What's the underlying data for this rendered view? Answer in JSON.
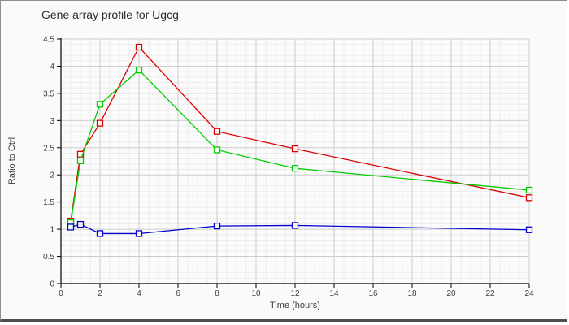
{
  "window": {
    "background": "#fafafa",
    "border_color": "#909090",
    "bottom_border_color": "#4f4f4f"
  },
  "title": {
    "text": "Gene array profile for Ugcg"
  },
  "chart_data": {
    "type": "line",
    "x": [
      0.5,
      1,
      2,
      4,
      8,
      12,
      24
    ],
    "series": [
      {
        "name": "red-series",
        "color": "#dd0000",
        "values": [
          1.15,
          2.38,
          2.95,
          4.35,
          2.8,
          2.48,
          1.58
        ]
      },
      {
        "name": "green-series",
        "color": "#00cc00",
        "values": [
          1.12,
          2.26,
          3.3,
          3.93,
          2.46,
          2.12,
          1.72
        ]
      },
      {
        "name": "blue-series",
        "color": "#0000cc",
        "values": [
          1.04,
          1.09,
          0.92,
          0.92,
          1.06,
          1.07,
          0.99
        ]
      }
    ],
    "title": "Gene array profile for Ugcg",
    "xlabel": "Time (hours)",
    "ylabel": "Ratio to Ctrl",
    "xlim": [
      0,
      24
    ],
    "ylim": [
      0,
      4.5
    ],
    "x_major_step": 2,
    "x_minor_step": 0.5,
    "y_major_step": 0.5,
    "y_minor_step": 0.1,
    "x_tick_labels": [
      "0",
      "2",
      "4",
      "6",
      "8",
      "10",
      "12",
      "14",
      "16",
      "18",
      "20",
      "22",
      "24"
    ],
    "y_tick_labels": [
      "0",
      "0.5",
      "1",
      "1.5",
      "2",
      "2.5",
      "3",
      "3.5",
      "4",
      "4.5"
    ],
    "grid": {
      "on": true,
      "major_color": "#cccccc",
      "minor_color": "#ececec"
    },
    "plot_background": "#fbfbfb",
    "axis_color": "#000000",
    "tick_label_color": "#3c3c3c",
    "marker": "open-square",
    "legend_position": "none"
  }
}
